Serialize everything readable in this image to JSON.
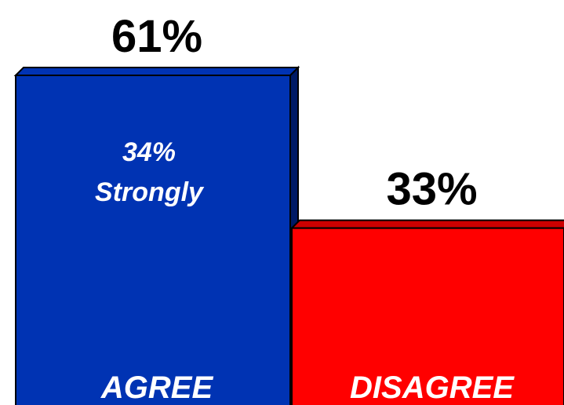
{
  "chart_data": {
    "type": "bar",
    "categories": [
      "AGREE",
      "DISAGREE"
    ],
    "values": [
      61,
      33
    ],
    "value_labels": [
      "61%",
      "33%"
    ],
    "inner_labels": [
      {
        "category": "AGREE",
        "lines": [
          "34%",
          "Strongly"
        ]
      }
    ],
    "colors": [
      "#0033b3",
      "#ff0000"
    ],
    "side_colors": [
      "#001a66",
      "#7a0000"
    ],
    "top_colors": [
      "#0033b3",
      "#cc0000"
    ],
    "ylim": [
      0,
      70
    ],
    "grid": false,
    "legend": "none",
    "title": "",
    "xlabel": "",
    "ylabel": ""
  }
}
